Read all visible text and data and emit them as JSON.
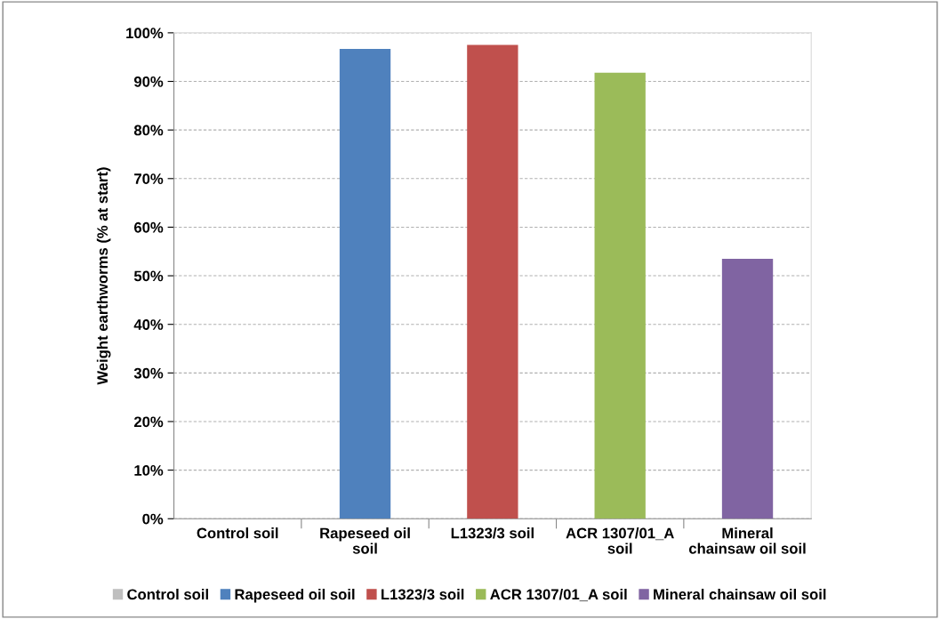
{
  "chart_data": {
    "type": "bar",
    "ylabel": "Weight earthworms (% at start)",
    "categories": [
      "Control soil",
      "Rapeseed oil soil",
      "L1323/3 soil",
      "ACR 1307/01_A soil",
      "Mineral chainsaw oil soil"
    ],
    "series": [
      {
        "name": "Control soil",
        "color": "#bfbfbf",
        "values": [
          0,
          null,
          null,
          null,
          null
        ]
      },
      {
        "name": "Rapeseed oil soil",
        "color": "#4f81bd",
        "values": [
          null,
          96.7,
          null,
          null,
          null
        ]
      },
      {
        "name": "L1323/3 soil",
        "color": "#c0504d",
        "values": [
          null,
          null,
          97.5,
          null,
          null
        ]
      },
      {
        "name": "ACR 1307/01_A soil",
        "color": "#9bbb59",
        "values": [
          null,
          null,
          null,
          91.8,
          null
        ]
      },
      {
        "name": "Mineral chainsaw oil soil",
        "color": "#8064a2",
        "values": [
          null,
          null,
          null,
          null,
          53.5
        ]
      }
    ],
    "ylim": [
      0,
      100
    ],
    "yticks": [
      {
        "value": 0,
        "label": "0%"
      },
      {
        "value": 10,
        "label": "10%"
      },
      {
        "value": 20,
        "label": "20%"
      },
      {
        "value": 30,
        "label": "30%"
      },
      {
        "value": 40,
        "label": "40%"
      },
      {
        "value": 50,
        "label": "50%"
      },
      {
        "value": 60,
        "label": "60%"
      },
      {
        "value": 70,
        "label": "70%"
      },
      {
        "value": 80,
        "label": "80%"
      },
      {
        "value": 90,
        "label": "90%"
      },
      {
        "value": 100,
        "label": "100%"
      }
    ],
    "grid": "y",
    "legend": "bottom"
  }
}
